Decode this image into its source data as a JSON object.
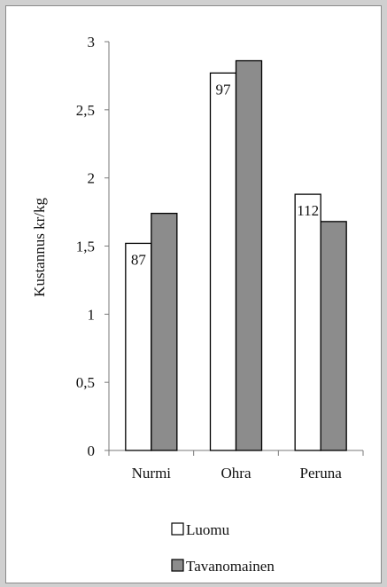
{
  "chart_data": {
    "type": "bar",
    "ylabel": "Kustannus kr/kg",
    "xlabel": "",
    "ylim": [
      0,
      3
    ],
    "yticks": [
      "0",
      "0,5",
      "1",
      "1,5",
      "2",
      "2,5",
      "3"
    ],
    "yticks_values": [
      0,
      0.5,
      1,
      1.5,
      2,
      2.5,
      3
    ],
    "categories": [
      "Nurmi",
      "Ohra",
      "Peruna"
    ],
    "series": [
      {
        "name": "Luomu",
        "values": [
          1.52,
          2.77,
          1.88
        ],
        "color": "#ffffff",
        "labels": [
          "87",
          "97",
          "112"
        ]
      },
      {
        "name": "Tavanomainen",
        "values": [
          1.74,
          2.86,
          1.68
        ],
        "color": "#8c8c8c",
        "labels": [
          "",
          "",
          ""
        ]
      }
    ],
    "grid": false,
    "legend_position": "bottom"
  },
  "colors": {
    "background": "#ffffff",
    "bar_stroke": "#000000",
    "axis": "#7a7a7a"
  }
}
